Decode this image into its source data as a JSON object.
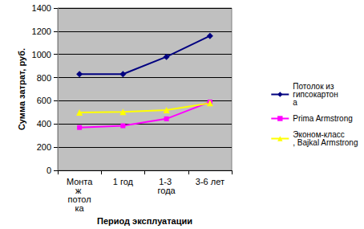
{
  "chart_data": {
    "type": "line",
    "x_label": "Период эксплуатации",
    "y_label": "Сумма затрат, руб.",
    "categories": [
      "Монтаж потолка",
      "1 год",
      "1-3 года",
      "3-6 лет"
    ],
    "series": [
      {
        "name": "Потолок из гипсокартона",
        "color": "#000080",
        "marker": "diamond",
        "values": [
          830,
          830,
          980,
          1160
        ]
      },
      {
        "name": "Prima Armstrong",
        "color": "#FF00FF",
        "marker": "square",
        "values": [
          370,
          385,
          445,
          590
        ]
      },
      {
        "name": "Эконом-класс, Bajkal Armstrong",
        "color": "#FFFF00",
        "marker": "triangle",
        "values": [
          500,
          505,
          520,
          580
        ]
      }
    ],
    "ylim": [
      0,
      1400
    ],
    "yticks": [
      0,
      200,
      400,
      600,
      800,
      1000,
      1200,
      1400
    ],
    "grid": true,
    "legend": "right"
  }
}
